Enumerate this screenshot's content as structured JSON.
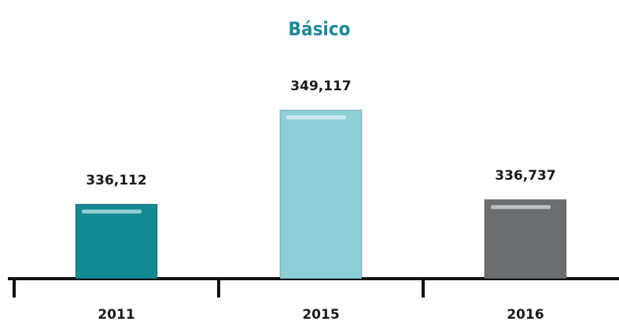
{
  "chart_data": {
    "type": "bar",
    "title": "Básico",
    "categories": [
      "2011",
      "2015",
      "2016"
    ],
    "values": [
      336112,
      349117,
      336737
    ],
    "value_labels": [
      "336,112",
      "349,117",
      "336,737"
    ],
    "colors": [
      "#138a92",
      "#8ccfd6",
      "#6b6e70"
    ],
    "ylim": [
      325800,
      350000
    ]
  }
}
